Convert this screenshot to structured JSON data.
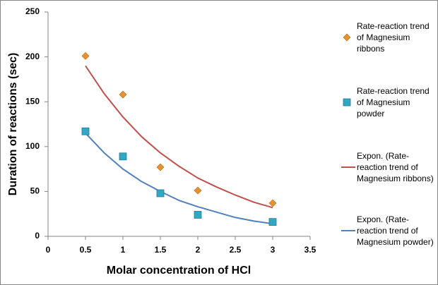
{
  "chart_data": {
    "type": "scatter",
    "x_label": "Molar concentration of HCl",
    "y_label": "Duration of reactions (sec)",
    "xlim": [
      0,
      3.5
    ],
    "xticks": [
      0,
      0.5,
      1,
      1.5,
      2,
      2.5,
      3,
      3.5
    ],
    "ylim": [
      0,
      250
    ],
    "yticks": [
      0,
      50,
      100,
      150,
      200,
      250
    ],
    "grid": false,
    "legend": "right",
    "series": [
      {
        "name": "Rate-reaction trend of Magnesium ribbons",
        "type": "scatter",
        "marker": "diamond",
        "color": "#e8912f",
        "x": [
          0.5,
          1,
          1.5,
          2,
          3
        ],
        "values": [
          201,
          158,
          77,
          51,
          37
        ]
      },
      {
        "name": "Rate-reaction trend of Magnesium powder",
        "type": "scatter",
        "marker": "square",
        "color": "#31a7c4",
        "x": [
          0.5,
          1,
          1.5,
          2,
          3
        ],
        "values": [
          117,
          89,
          48,
          24,
          16
        ]
      },
      {
        "name": "Expon. (Rate-reaction trend of Magnesium ribbons)",
        "type": "line",
        "color": "#c0504d",
        "x": [
          0.5,
          0.75,
          1,
          1.25,
          1.5,
          1.75,
          2,
          2.25,
          2.5,
          2.75,
          3
        ],
        "values": [
          190,
          159,
          133,
          111,
          93,
          78,
          65,
          55,
          46,
          38,
          32
        ]
      },
      {
        "name": "Expon. (Rate-reaction trend of Magnesium powder)",
        "type": "line",
        "color": "#4f81bd",
        "x": [
          0.5,
          0.75,
          1,
          1.25,
          1.5,
          1.75,
          2,
          2.25,
          2.5,
          2.75,
          3
        ],
        "values": [
          115,
          93,
          75,
          61,
          50,
          40,
          33,
          27,
          21,
          17,
          14
        ]
      }
    ]
  }
}
